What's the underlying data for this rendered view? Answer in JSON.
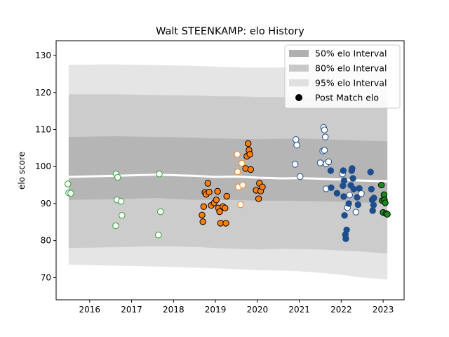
{
  "chart_data": {
    "type": "scatter",
    "title": "Walt STEENKAMP: elo History",
    "xlabel": "",
    "ylabel": "elo score",
    "xlim": [
      2015.2,
      2023.5
    ],
    "ylim": [
      64,
      134
    ],
    "xticks": [
      2016,
      2017,
      2018,
      2019,
      2020,
      2021,
      2022,
      2023
    ],
    "yticks": [
      70,
      80,
      90,
      100,
      110,
      120,
      130
    ],
    "grid": false,
    "legend_position": "top-right",
    "legend": [
      {
        "label": "50% elo Interval",
        "kind": "band",
        "color": "#b0b0b0"
      },
      {
        "label": "80% elo Interval",
        "kind": "band",
        "color": "#c8c8c8"
      },
      {
        "label": "95% elo Interval",
        "kind": "band",
        "color": "#e0e0e0"
      },
      {
        "label": "Post Match elo",
        "kind": "marker",
        "color": "#000000"
      }
    ],
    "intervals": {
      "x": [
        2015.5,
        2016.6,
        2017.6,
        2018.5,
        2019.0,
        2019.5,
        2020.0,
        2020.6,
        2021.0,
        2021.5,
        2022.0,
        2022.5,
        2023.1
      ],
      "mean": [
        97.2,
        97.5,
        97.8,
        97.5,
        97.2,
        97.3,
        97.0,
        96.8,
        96.9,
        96.7,
        96.5,
        96.2,
        96.0
      ],
      "band50": {
        "low": [
          91.0,
          91.2,
          91.5,
          91.0,
          91.0,
          91.0,
          90.8,
          90.8,
          90.7,
          90.6,
          90.5,
          90.3,
          90.0
        ],
        "high": [
          108.0,
          108.2,
          108.0,
          107.8,
          107.6,
          107.5,
          107.4,
          107.5,
          107.6,
          107.4,
          107.2,
          107.0,
          106.8
        ]
      },
      "band80": {
        "low": [
          78.0,
          78.2,
          78.5,
          78.3,
          78.0,
          77.8,
          77.6,
          77.8,
          77.7,
          77.6,
          77.3,
          77.0,
          76.5
        ],
        "high": [
          119.5,
          119.5,
          119.3,
          119.2,
          119.0,
          119.0,
          118.8,
          118.8,
          118.9,
          118.7,
          118.5,
          118.2,
          118.0
        ]
      },
      "band95": {
        "low": [
          73.5,
          73.2,
          73.0,
          72.7,
          72.5,
          72.3,
          72.0,
          71.9,
          71.7,
          71.3,
          70.8,
          70.0,
          69.5
        ],
        "high": [
          127.5,
          127.6,
          127.4,
          127.2,
          127.0,
          126.8,
          126.7,
          126.8,
          127.0,
          126.8,
          126.5,
          126.0,
          125.5
        ]
      }
    },
    "series": [
      {
        "color": "#2ca02c",
        "hollow_color": "#ffffff",
        "stroke": "#2ca02c",
        "points": [
          {
            "x": 2015.48,
            "y": 95.3,
            "filled": false
          },
          {
            "x": 2015.5,
            "y": 92.9,
            "filled": false
          },
          {
            "x": 2015.55,
            "y": 92.8,
            "filled": false
          },
          {
            "x": 2016.63,
            "y": 98.0,
            "filled": false
          },
          {
            "x": 2016.67,
            "y": 97.1,
            "filled": false
          },
          {
            "x": 2016.65,
            "y": 91.0,
            "filled": false
          },
          {
            "x": 2016.75,
            "y": 90.6,
            "filled": false
          },
          {
            "x": 2016.77,
            "y": 86.8,
            "filled": false
          },
          {
            "x": 2016.62,
            "y": 84.0,
            "filled": false
          },
          {
            "x": 2017.66,
            "y": 98.0,
            "filled": false
          },
          {
            "x": 2017.69,
            "y": 87.8,
            "filled": false
          },
          {
            "x": 2017.64,
            "y": 81.5,
            "filled": false
          }
        ]
      },
      {
        "color": "#ff7f0e",
        "stroke": "#000000",
        "points": [
          {
            "x": 2018.68,
            "y": 86.9,
            "filled": true
          },
          {
            "x": 2018.7,
            "y": 85.1,
            "filled": true
          },
          {
            "x": 2018.72,
            "y": 89.2,
            "filled": true
          },
          {
            "x": 2018.75,
            "y": 93.0,
            "filled": true
          },
          {
            "x": 2018.78,
            "y": 92.5,
            "filled": true
          },
          {
            "x": 2018.82,
            "y": 95.5,
            "filled": true
          },
          {
            "x": 2018.85,
            "y": 93.1,
            "filled": true
          },
          {
            "x": 2018.9,
            "y": 89.5,
            "filled": true
          },
          {
            "x": 2018.97,
            "y": 90.2,
            "filled": true
          },
          {
            "x": 2019.02,
            "y": 91.0,
            "filled": true
          },
          {
            "x": 2019.05,
            "y": 93.3,
            "filled": true
          },
          {
            "x": 2019.07,
            "y": 88.8,
            "filled": true
          },
          {
            "x": 2019.1,
            "y": 87.8,
            "filled": true
          },
          {
            "x": 2019.12,
            "y": 84.7,
            "filled": true
          },
          {
            "x": 2019.18,
            "y": 89.2,
            "filled": true
          },
          {
            "x": 2019.23,
            "y": 88.8,
            "filled": true
          },
          {
            "x": 2019.25,
            "y": 84.7,
            "filled": true
          },
          {
            "x": 2019.27,
            "y": 92.0,
            "filled": true
          },
          {
            "x": 2019.52,
            "y": 103.3,
            "filled": false
          },
          {
            "x": 2019.53,
            "y": 98.6,
            "filled": false
          },
          {
            "x": 2019.55,
            "y": 94.5,
            "filled": false
          },
          {
            "x": 2019.6,
            "y": 89.7,
            "filled": false
          },
          {
            "x": 2019.65,
            "y": 95.0,
            "filled": false
          },
          {
            "x": 2019.63,
            "y": 100.9,
            "filled": false
          },
          {
            "x": 2019.72,
            "y": 99.5,
            "filled": true
          },
          {
            "x": 2019.75,
            "y": 102.8,
            "filled": true
          },
          {
            "x": 2019.78,
            "y": 106.2,
            "filled": true
          },
          {
            "x": 2019.8,
            "y": 104.4,
            "filled": true
          },
          {
            "x": 2019.82,
            "y": 103.3,
            "filled": true
          },
          {
            "x": 2019.84,
            "y": 99.2,
            "filled": true
          },
          {
            "x": 2019.97,
            "y": 93.6,
            "filled": true
          },
          {
            "x": 2020.03,
            "y": 91.3,
            "filled": true
          },
          {
            "x": 2020.05,
            "y": 95.5,
            "filled": true
          },
          {
            "x": 2020.08,
            "y": 93.4,
            "filled": true
          },
          {
            "x": 2020.12,
            "y": 94.5,
            "filled": true
          }
        ]
      },
      {
        "color": "#1f4e8c",
        "stroke": "#1f4e8c",
        "hollow_color": "#ffffff",
        "points": [
          {
            "x": 2020.92,
            "y": 107.3,
            "filled": false
          },
          {
            "x": 2020.94,
            "y": 105.8,
            "filled": false
          },
          {
            "x": 2020.9,
            "y": 100.6,
            "filled": false
          },
          {
            "x": 2021.02,
            "y": 97.3,
            "filled": false
          },
          {
            "x": 2021.5,
            "y": 101.0,
            "filled": false
          },
          {
            "x": 2021.56,
            "y": 104.2,
            "filled": false
          },
          {
            "x": 2021.58,
            "y": 110.6,
            "filled": false
          },
          {
            "x": 2021.6,
            "y": 109.9,
            "filled": false
          },
          {
            "x": 2021.62,
            "y": 108.0,
            "filled": false
          },
          {
            "x": 2021.6,
            "y": 104.4,
            "filled": false
          },
          {
            "x": 2021.64,
            "y": 100.7,
            "filled": false
          },
          {
            "x": 2021.7,
            "y": 101.3,
            "filled": false
          },
          {
            "x": 2021.64,
            "y": 94.0,
            "filled": false
          },
          {
            "x": 2021.76,
            "y": 94.3,
            "filled": true
          },
          {
            "x": 2021.75,
            "y": 98.9,
            "filled": true
          },
          {
            "x": 2021.9,
            "y": 92.8,
            "filled": true
          },
          {
            "x": 2022.03,
            "y": 98.0,
            "filled": false
          },
          {
            "x": 2022.05,
            "y": 98.9,
            "filled": true
          },
          {
            "x": 2022.04,
            "y": 94.8,
            "filled": true
          },
          {
            "x": 2022.06,
            "y": 91.9,
            "filled": true
          },
          {
            "x": 2022.07,
            "y": 96.2,
            "filled": true
          },
          {
            "x": 2022.08,
            "y": 86.8,
            "filled": true
          },
          {
            "x": 2022.1,
            "y": 81.6,
            "filled": true
          },
          {
            "x": 2022.11,
            "y": 80.5,
            "filled": true
          },
          {
            "x": 2022.13,
            "y": 82.9,
            "filled": true
          },
          {
            "x": 2022.15,
            "y": 88.9,
            "filled": false
          },
          {
            "x": 2022.18,
            "y": 90.0,
            "filled": true
          },
          {
            "x": 2022.2,
            "y": 92.3,
            "filled": false
          },
          {
            "x": 2022.23,
            "y": 94.9,
            "filled": true
          },
          {
            "x": 2022.25,
            "y": 98.9,
            "filled": true
          },
          {
            "x": 2022.26,
            "y": 99.5,
            "filled": true
          },
          {
            "x": 2022.28,
            "y": 96.8,
            "filled": true
          },
          {
            "x": 2022.3,
            "y": 93.9,
            "filled": true
          },
          {
            "x": 2022.35,
            "y": 87.7,
            "filled": false
          },
          {
            "x": 2022.38,
            "y": 91.7,
            "filled": true
          },
          {
            "x": 2022.4,
            "y": 89.7,
            "filled": true
          },
          {
            "x": 2022.43,
            "y": 94.1,
            "filled": true
          },
          {
            "x": 2022.48,
            "y": 92.7,
            "filled": false
          },
          {
            "x": 2022.7,
            "y": 98.5,
            "filled": true
          },
          {
            "x": 2022.72,
            "y": 93.9,
            "filled": true
          },
          {
            "x": 2022.74,
            "y": 91.0,
            "filled": true
          },
          {
            "x": 2022.77,
            "y": 89.6,
            "filled": true
          },
          {
            "x": 2022.75,
            "y": 88.1,
            "filled": true
          },
          {
            "x": 2022.78,
            "y": 91.5,
            "filled": true
          }
        ]
      },
      {
        "color": "#1a8a1a",
        "stroke": "#000000",
        "points": [
          {
            "x": 2022.96,
            "y": 95.0,
            "filled": true
          },
          {
            "x": 2022.98,
            "y": 90.8,
            "filled": true
          },
          {
            "x": 2023.02,
            "y": 92.4,
            "filled": true
          },
          {
            "x": 2023.03,
            "y": 91.0,
            "filled": true
          },
          {
            "x": 2023.05,
            "y": 90.2,
            "filled": true
          },
          {
            "x": 2023.0,
            "y": 87.6,
            "filled": true
          },
          {
            "x": 2023.07,
            "y": 87.3,
            "filled": true
          },
          {
            "x": 2023.1,
            "y": 87.1,
            "filled": true
          }
        ]
      }
    ]
  }
}
